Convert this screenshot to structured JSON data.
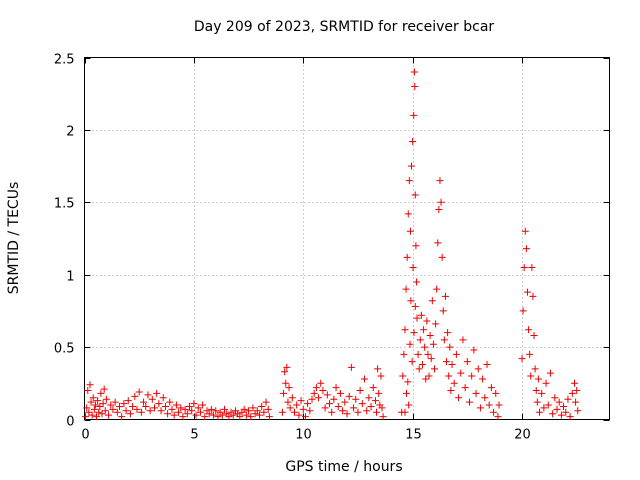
{
  "chart_data": {
    "type": "scatter",
    "title": "Day 209 of 2023, SRMTID for receiver bcar",
    "xlabel": "GPS time / hours",
    "ylabel": "SRMTID / TECUs",
    "xlim": [
      0,
      24
    ],
    "ylim": [
      0,
      2.5
    ],
    "x_ticks": [
      0,
      5,
      10,
      15,
      20
    ],
    "x_tick_labels": [
      "0",
      "5",
      "10",
      "15",
      "20"
    ],
    "y_ticks": [
      0,
      0.5,
      1,
      1.5,
      2,
      2.5
    ],
    "y_tick_labels": [
      "0",
      "0.5",
      "1",
      "1.5",
      "2",
      "2.5"
    ],
    "grid": true,
    "marker": "+",
    "series": [
      {
        "name": "SRMTID",
        "color": "#ee0000",
        "points": [
          [
            0.05,
            0.02
          ],
          [
            0.1,
            0.08
          ],
          [
            0.15,
            0.2
          ],
          [
            0.2,
            0.05
          ],
          [
            0.25,
            0.24
          ],
          [
            0.3,
            0.12
          ],
          [
            0.35,
            0.03
          ],
          [
            0.4,
            0.15
          ],
          [
            0.45,
            0.07
          ],
          [
            0.5,
            0.1
          ],
          [
            0.55,
            0.02
          ],
          [
            0.6,
            0.13
          ],
          [
            0.65,
            0.05
          ],
          [
            0.7,
            0.09
          ],
          [
            0.75,
            0.18
          ],
          [
            0.8,
            0.04
          ],
          [
            0.85,
            0.11
          ],
          [
            0.9,
            0.21
          ],
          [
            0.95,
            0.06
          ],
          [
            1.0,
            0.14
          ],
          [
            1.1,
            0.03
          ],
          [
            1.2,
            0.1
          ],
          [
            1.3,
            0.07
          ],
          [
            1.4,
            0.12
          ],
          [
            1.5,
            0.05
          ],
          [
            1.6,
            0.09
          ],
          [
            1.7,
            0.02
          ],
          [
            1.8,
            0.11
          ],
          [
            1.9,
            0.06
          ],
          [
            2.0,
            0.13
          ],
          [
            2.1,
            0.04
          ],
          [
            2.2,
            0.09
          ],
          [
            2.3,
            0.16
          ],
          [
            2.4,
            0.07
          ],
          [
            2.5,
            0.19
          ],
          [
            2.6,
            0.05
          ],
          [
            2.7,
            0.12
          ],
          [
            2.8,
            0.09
          ],
          [
            2.9,
            0.17
          ],
          [
            3.0,
            0.06
          ],
          [
            3.1,
            0.14
          ],
          [
            3.2,
            0.08
          ],
          [
            3.3,
            0.18
          ],
          [
            3.4,
            0.11
          ],
          [
            3.5,
            0.06
          ],
          [
            3.6,
            0.15
          ],
          [
            3.7,
            0.09
          ],
          [
            3.8,
            0.04
          ],
          [
            3.9,
            0.12
          ],
          [
            4.0,
            0.07
          ],
          [
            4.1,
            0.03
          ],
          [
            4.2,
            0.1
          ],
          [
            4.3,
            0.05
          ],
          [
            4.4,
            0.08
          ],
          [
            4.5,
            0.02
          ],
          [
            4.6,
            0.07
          ],
          [
            4.7,
            0.04
          ],
          [
            4.8,
            0.09
          ],
          [
            4.9,
            0.06
          ],
          [
            5.0,
            0.11
          ],
          [
            5.1,
            0.03
          ],
          [
            5.2,
            0.08
          ],
          [
            5.3,
            0.05
          ],
          [
            5.4,
            0.1
          ],
          [
            5.5,
            0.02
          ],
          [
            5.6,
            0.06
          ],
          [
            5.7,
            0.04
          ],
          [
            5.8,
            0.07
          ],
          [
            5.9,
            0.03
          ],
          [
            6.0,
            0.06
          ],
          [
            6.1,
            0.02
          ],
          [
            6.2,
            0.05
          ],
          [
            6.3,
            0.03
          ],
          [
            6.4,
            0.07
          ],
          [
            6.5,
            0.04
          ],
          [
            6.6,
            0.02
          ],
          [
            6.7,
            0.05
          ],
          [
            6.8,
            0.03
          ],
          [
            6.9,
            0.06
          ],
          [
            7.0,
            0.04
          ],
          [
            7.1,
            0.02
          ],
          [
            7.2,
            0.05
          ],
          [
            7.3,
            0.07
          ],
          [
            7.4,
            0.03
          ],
          [
            7.5,
            0.06
          ],
          [
            7.6,
            0.02
          ],
          [
            7.7,
            0.08
          ],
          [
            7.8,
            0.04
          ],
          [
            7.9,
            0.06
          ],
          [
            8.0,
            0.03
          ],
          [
            8.1,
            0.09
          ],
          [
            8.2,
            0.05
          ],
          [
            8.3,
            0.12
          ],
          [
            8.4,
            0.07
          ],
          [
            8.45,
            0.02
          ],
          [
            9.05,
            0.05
          ],
          [
            9.1,
            0.18
          ],
          [
            9.15,
            0.33
          ],
          [
            9.2,
            0.25
          ],
          [
            9.25,
            0.36
          ],
          [
            9.3,
            0.12
          ],
          [
            9.35,
            0.22
          ],
          [
            9.4,
            0.08
          ],
          [
            9.5,
            0.15
          ],
          [
            9.6,
            0.05
          ],
          [
            9.7,
            0.1
          ],
          [
            9.8,
            0.03
          ],
          [
            9.9,
            0.13
          ],
          [
            10.0,
            0.07
          ],
          [
            10.1,
            0.02
          ],
          [
            10.2,
            0.11
          ],
          [
            10.3,
            0.06
          ],
          [
            10.4,
            0.14
          ],
          [
            10.5,
            0.18
          ],
          [
            10.6,
            0.22
          ],
          [
            10.7,
            0.15
          ],
          [
            10.8,
            0.25
          ],
          [
            10.9,
            0.2
          ],
          [
            11.0,
            0.08
          ],
          [
            11.1,
            0.17
          ],
          [
            11.2,
            0.11
          ],
          [
            11.3,
            0.05
          ],
          [
            11.4,
            0.14
          ],
          [
            11.5,
            0.22
          ],
          [
            11.6,
            0.09
          ],
          [
            11.7,
            0.18
          ],
          [
            11.8,
            0.06
          ],
          [
            11.9,
            0.12
          ],
          [
            12.0,
            0.04
          ],
          [
            12.1,
            0.16
          ],
          [
            12.2,
            0.36
          ],
          [
            12.3,
            0.08
          ],
          [
            12.4,
            0.14
          ],
          [
            12.5,
            0.05
          ],
          [
            12.6,
            0.2
          ],
          [
            12.7,
            0.11
          ],
          [
            12.8,
            0.28
          ],
          [
            12.9,
            0.06
          ],
          [
            13.0,
            0.15
          ],
          [
            13.1,
            0.09
          ],
          [
            13.2,
            0.22
          ],
          [
            13.3,
            0.13
          ],
          [
            13.35,
            0.05
          ],
          [
            13.4,
            0.35
          ],
          [
            13.45,
            0.18
          ],
          [
            13.5,
            0.1
          ],
          [
            13.55,
            0.3
          ],
          [
            13.6,
            0.08
          ],
          [
            13.65,
            0.02
          ],
          [
            14.5,
            0.05
          ],
          [
            14.55,
            0.3
          ],
          [
            14.6,
            0.45
          ],
          [
            14.65,
            0.62
          ],
          [
            14.7,
            0.9
          ],
          [
            14.75,
            1.12
          ],
          [
            14.8,
            1.42
          ],
          [
            14.85,
            1.65
          ],
          [
            14.9,
            1.3
          ],
          [
            14.95,
            1.75
          ],
          [
            15.0,
            1.92
          ],
          [
            15.05,
            2.1
          ],
          [
            15.08,
            2.4
          ],
          [
            15.1,
            2.3
          ],
          [
            15.12,
            1.55
          ],
          [
            15.15,
            1.2
          ],
          [
            15.18,
            0.95
          ],
          [
            15.2,
            0.7
          ],
          [
            15.25,
            0.45
          ],
          [
            15.3,
            0.35
          ],
          [
            14.65,
            0.05
          ],
          [
            14.72,
            0.18
          ],
          [
            14.78,
            0.26
          ],
          [
            14.82,
            0.1
          ],
          [
            14.88,
            0.52
          ],
          [
            14.92,
            0.82
          ],
          [
            14.98,
            0.4
          ],
          [
            15.02,
            1.05
          ],
          [
            15.06,
            0.6
          ],
          [
            15.12,
            0.78
          ],
          [
            15.35,
            0.55
          ],
          [
            15.4,
            0.72
          ],
          [
            15.45,
            0.38
          ],
          [
            15.5,
            0.62
          ],
          [
            15.55,
            0.5
          ],
          [
            15.6,
            0.28
          ],
          [
            15.65,
            0.68
          ],
          [
            15.7,
            0.45
          ],
          [
            15.75,
            0.3
          ],
          [
            15.8,
            0.58
          ],
          [
            15.85,
            0.42
          ],
          [
            15.9,
            0.82
          ],
          [
            15.95,
            0.52
          ],
          [
            16.0,
            0.35
          ],
          [
            16.05,
            0.66
          ],
          [
            16.1,
            0.9
          ],
          [
            16.15,
            1.22
          ],
          [
            16.2,
            1.45
          ],
          [
            16.25,
            1.65
          ],
          [
            16.3,
            1.5
          ],
          [
            16.35,
            1.12
          ],
          [
            16.4,
            0.75
          ],
          [
            16.45,
            0.55
          ],
          [
            16.5,
            0.85
          ],
          [
            16.55,
            0.4
          ],
          [
            16.6,
            0.6
          ],
          [
            16.65,
            0.3
          ],
          [
            16.7,
            0.5
          ],
          [
            16.75,
            0.2
          ],
          [
            16.8,
            0.38
          ],
          [
            16.9,
            0.25
          ],
          [
            17.0,
            0.45
          ],
          [
            17.1,
            0.15
          ],
          [
            17.2,
            0.32
          ],
          [
            17.3,
            0.55
          ],
          [
            17.4,
            0.22
          ],
          [
            17.5,
            0.4
          ],
          [
            17.6,
            0.12
          ],
          [
            17.7,
            0.3
          ],
          [
            17.8,
            0.48
          ],
          [
            17.9,
            0.18
          ],
          [
            18.0,
            0.35
          ],
          [
            18.1,
            0.08
          ],
          [
            18.2,
            0.28
          ],
          [
            18.3,
            0.15
          ],
          [
            18.4,
            0.38
          ],
          [
            18.5,
            0.1
          ],
          [
            18.6,
            0.22
          ],
          [
            18.7,
            0.05
          ],
          [
            18.8,
            0.18
          ],
          [
            18.9,
            0.02
          ],
          [
            18.95,
            0.1
          ],
          [
            20.0,
            0.42
          ],
          [
            20.05,
            0.75
          ],
          [
            20.1,
            1.05
          ],
          [
            20.15,
            1.3
          ],
          [
            20.2,
            1.18
          ],
          [
            20.25,
            0.88
          ],
          [
            20.3,
            0.62
          ],
          [
            20.35,
            0.45
          ],
          [
            20.4,
            0.3
          ],
          [
            20.45,
            1.05
          ],
          [
            20.5,
            0.85
          ],
          [
            20.55,
            0.58
          ],
          [
            20.6,
            0.35
          ],
          [
            20.65,
            0.2
          ],
          [
            20.7,
            0.12
          ],
          [
            20.75,
            0.28
          ],
          [
            20.8,
            0.05
          ],
          [
            20.9,
            0.18
          ],
          [
            21.0,
            0.08
          ],
          [
            21.1,
            0.25
          ],
          [
            21.2,
            0.1
          ],
          [
            21.3,
            0.32
          ],
          [
            21.4,
            0.04
          ],
          [
            21.5,
            0.15
          ],
          [
            21.6,
            0.07
          ],
          [
            21.7,
            0.12
          ],
          [
            21.8,
            0.03
          ],
          [
            21.9,
            0.09
          ],
          [
            22.0,
            0.05
          ],
          [
            22.1,
            0.14
          ],
          [
            22.2,
            0.02
          ],
          [
            22.3,
            0.18
          ],
          [
            22.4,
            0.25
          ],
          [
            22.45,
            0.12
          ],
          [
            22.5,
            0.2
          ],
          [
            22.55,
            0.06
          ]
        ]
      }
    ]
  }
}
